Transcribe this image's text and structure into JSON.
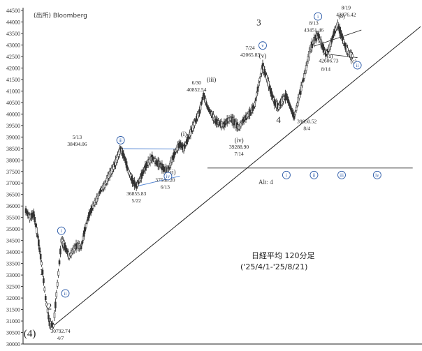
{
  "source_label": "(出所) Bloomberg",
  "chart_title_line1": "日経平均 120分足",
  "chart_title_line2": "('25/4/1-'25/8/21)",
  "alt_label": "Alt: 4",
  "colors": {
    "candles": "#333333",
    "blue": "#2b5aa8",
    "channel": "#5b8bd6",
    "trend": "#222222"
  },
  "chart_data": {
    "type": "line",
    "title": "日経平均 120分足",
    "subtitle": "('25/4/1-'25/8/21)",
    "ylim": [
      30000,
      44500
    ],
    "ytick_step": 500,
    "grid": false,
    "index_range": [
      0,
      100
    ],
    "price_path": [
      [
        0,
        35800
      ],
      [
        1,
        35500
      ],
      [
        2,
        35650
      ],
      [
        3,
        34700
      ],
      [
        4,
        33500
      ],
      [
        5,
        32000
      ],
      [
        6,
        30900
      ],
      [
        7,
        30793
      ],
      [
        8,
        32600
      ],
      [
        9,
        34500
      ],
      [
        10,
        34200
      ],
      [
        11,
        33800
      ],
      [
        12,
        34100
      ],
      [
        13,
        34300
      ],
      [
        14,
        34200
      ],
      [
        15,
        35000
      ],
      [
        16,
        35600
      ],
      [
        17,
        36000
      ],
      [
        18,
        36300
      ],
      [
        19,
        36700
      ],
      [
        20,
        36900
      ],
      [
        21,
        37300
      ],
      [
        22,
        37600
      ],
      [
        23,
        38000
      ],
      [
        24,
        38494
      ],
      [
        25,
        38100
      ],
      [
        26,
        37500
      ],
      [
        27,
        37100
      ],
      [
        28,
        36856
      ],
      [
        29,
        37200
      ],
      [
        30,
        37600
      ],
      [
        31,
        37900
      ],
      [
        32,
        38100
      ],
      [
        33,
        37900
      ],
      [
        34,
        37800
      ],
      [
        35,
        37600
      ],
      [
        36,
        37540
      ],
      [
        37,
        38000
      ],
      [
        38,
        38400
      ],
      [
        39,
        38700
      ],
      [
        40,
        38500
      ],
      [
        41,
        38900
      ],
      [
        42,
        39300
      ],
      [
        43,
        39700
      ],
      [
        44,
        40100
      ],
      [
        45,
        40853
      ],
      [
        46,
        40300
      ],
      [
        47,
        40000
      ],
      [
        48,
        39700
      ],
      [
        49,
        39600
      ],
      [
        50,
        39500
      ],
      [
        51,
        39700
      ],
      [
        52,
        39800
      ],
      [
        53,
        39600
      ],
      [
        54,
        39400
      ],
      [
        55,
        39700
      ],
      [
        56,
        39900
      ],
      [
        57,
        40100
      ],
      [
        58,
        40400
      ],
      [
        59,
        41300
      ],
      [
        60,
        42066
      ],
      [
        61,
        41600
      ],
      [
        62,
        41000
      ],
      [
        63,
        40500
      ],
      [
        64,
        40300
      ],
      [
        65,
        40600
      ],
      [
        66,
        40800
      ],
      [
        67,
        40300
      ],
      [
        68,
        39851
      ],
      [
        69,
        40600
      ],
      [
        70,
        41300
      ],
      [
        71,
        42000
      ],
      [
        72,
        42800
      ],
      [
        73,
        43200
      ],
      [
        74,
        43451
      ],
      [
        75,
        43000
      ],
      [
        76,
        42607
      ],
      [
        77,
        42900
      ],
      [
        78,
        43500
      ],
      [
        79,
        43876
      ],
      [
        80,
        43400
      ],
      [
        81,
        42900
      ],
      [
        82,
        42600
      ],
      [
        83,
        42500
      ]
    ],
    "trendline": [
      [
        7,
        30793
      ],
      [
        100,
        43800
      ]
    ],
    "upper_line": [
      [
        73,
        42950
      ],
      [
        85,
        43650
      ]
    ],
    "lower_line": [
      [
        76,
        42607
      ],
      [
        84,
        42450
      ]
    ],
    "triangle_upper": [
      [
        24,
        38494
      ],
      [
        39,
        38480
      ]
    ],
    "triangle_lower": [
      [
        28,
        36856
      ],
      [
        39,
        37300
      ]
    ],
    "alt_hline": {
      "y": 37650,
      "x0": 46,
      "x1": 98
    },
    "annotations": [
      {
        "x": 13,
        "y": 38560,
        "text": "5/13",
        "dx": 0,
        "dy": -12
      },
      {
        "x": 13,
        "y": 38560,
        "text": "38494.06",
        "dx": 0,
        "dy": -2
      },
      {
        "x": 28,
        "y": 36856,
        "text": "36855.83",
        "dx": 0,
        "dy": 13
      },
      {
        "x": 28,
        "y": 36856,
        "text": "5/22",
        "dx": 0,
        "dy": 23
      },
      {
        "x": 36,
        "y": 37540,
        "text": "37540.20",
        "dx": -4,
        "dy": 16
      },
      {
        "x": 36,
        "y": 37540,
        "text": "6/13",
        "dx": -4,
        "dy": 26
      },
      {
        "x": 45,
        "y": 40853,
        "text": "6/30",
        "dx": -10,
        "dy": -14
      },
      {
        "x": 45,
        "y": 40853,
        "text": "40852.54",
        "dx": -10,
        "dy": -4
      },
      {
        "x": 60,
        "y": 42066,
        "text": "7/24",
        "dx": -18,
        "dy": -24
      },
      {
        "x": 60,
        "y": 42066,
        "text": "42065.83",
        "dx": -18,
        "dy": -14
      },
      {
        "x": 54,
        "y": 39400,
        "text": "39288.90",
        "dx": 0,
        "dy": 30
      },
      {
        "x": 54,
        "y": 39400,
        "text": "7/14",
        "dx": 0,
        "dy": 40
      },
      {
        "x": 68,
        "y": 39851,
        "text": "39850.52",
        "dx": 18,
        "dy": 8
      },
      {
        "x": 68,
        "y": 39851,
        "text": "8/4",
        "dx": 18,
        "dy": 18
      },
      {
        "x": 74,
        "y": 43451,
        "text": "8/13",
        "dx": -6,
        "dy": -14
      },
      {
        "x": 74,
        "y": 43451,
        "text": "43451.46",
        "dx": -6,
        "dy": -4
      },
      {
        "x": 79,
        "y": 43876,
        "text": "8/19",
        "dx": 12,
        "dy": -22
      },
      {
        "x": 79,
        "y": 43876,
        "text": "43876.42",
        "dx": 12,
        "dy": -12
      },
      {
        "x": 76,
        "y": 42607,
        "text": "42606.73",
        "dx": 4,
        "dy": 12
      },
      {
        "x": 76,
        "y": 42607,
        "text": "8/14",
        "dx": 0,
        "dy": 24
      },
      {
        "x": 7,
        "y": 30793,
        "text": "30792.74",
        "dx": 10,
        "dy": 10
      },
      {
        "x": 7,
        "y": 30793,
        "text": "4/7",
        "dx": 10,
        "dy": 20
      }
    ],
    "wave_labels": [
      {
        "x": 1,
        "y": 30500,
        "text": "(4)",
        "dy": 6,
        "size": 15
      },
      {
        "x": 4,
        "y": 33000,
        "text": "1",
        "dy": 0,
        "size": 13
      },
      {
        "x": 6,
        "y": 31500,
        "text": "2",
        "dy": 0,
        "size": 13
      },
      {
        "x": 59,
        "y": 42700,
        "text": "3",
        "dy": -38,
        "size": 13
      },
      {
        "x": 64,
        "y": 40100,
        "text": "4",
        "dy": 16,
        "size": 13
      },
      {
        "x": 37,
        "y": 38000,
        "text": "(ii)",
        "dy": 20,
        "size": 9
      },
      {
        "x": 40,
        "y": 38500,
        "text": "(i)",
        "dy": -18,
        "size": 9
      },
      {
        "x": 47,
        "y": 40853,
        "text": "(iii)",
        "dy": -18,
        "size": 9
      },
      {
        "x": 54,
        "y": 39500,
        "text": "(iv)",
        "dy": 24,
        "size": 9
      },
      {
        "x": 60,
        "y": 42066,
        "text": "(v)",
        "dy": -12,
        "size": 9
      },
      {
        "x": 77,
        "y": 42800,
        "text": "(a)",
        "dy": 12,
        "size": 8
      },
      {
        "x": 80,
        "y": 43800,
        "text": "(b)",
        "dy": -12,
        "size": 8
      },
      {
        "x": 83,
        "y": 42450,
        "text": "(c)",
        "dy": 8,
        "size": 8
      }
    ],
    "circled_labels": [
      {
        "x": 9,
        "y": 34500,
        "text": "i",
        "dy": -14
      },
      {
        "x": 10,
        "y": 32200,
        "text": "ii",
        "dy": 0
      },
      {
        "x": 24,
        "y": 38494,
        "text": "iii",
        "dy": -12
      },
      {
        "x": 36,
        "y": 37540,
        "text": "iv",
        "dy": 8
      },
      {
        "x": 60,
        "y": 42066,
        "text": "v",
        "dy": -30
      },
      {
        "x": 74,
        "y": 43451,
        "text": "i",
        "dy": -26
      },
      {
        "x": 84,
        "y": 42300,
        "text": "ii",
        "dy": 6
      },
      {
        "x": 66,
        "y": 37650,
        "text": "i",
        "dy": 10
      },
      {
        "x": 73,
        "y": 37650,
        "text": "ii",
        "dy": 10
      },
      {
        "x": 80,
        "y": 37650,
        "text": "iii",
        "dy": 10
      },
      {
        "x": 89,
        "y": 37650,
        "text": "iv",
        "dy": 10
      }
    ]
  }
}
